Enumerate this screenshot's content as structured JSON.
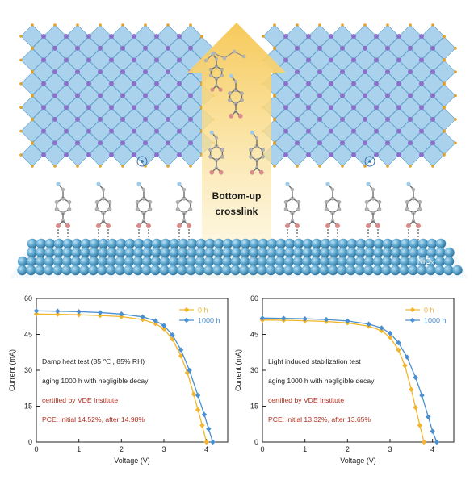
{
  "scene": {
    "arrow_label_line1": "Bottom-up",
    "arrow_label_line2": "crosslink",
    "substrate_label": "NiOₓ",
    "colors": {
      "octahedron": "#8fc3e6",
      "octahedron_edge": "#5b9bc8",
      "cation": "#8c6fc8",
      "anion": "#e0a12a",
      "substrate": "#4f9cc6",
      "arrow": "#f7d98a",
      "molecule_carbon": "#b3b3b3",
      "molecule_oxygen": "#d98a8a"
    }
  },
  "chart_data": [
    {
      "type": "line",
      "xlabel": "Voltage (V)",
      "ylabel": "Current (mA)",
      "xlim": [
        0,
        4.5
      ],
      "ylim": [
        0,
        60
      ],
      "xticks": [
        "0",
        "1",
        "2",
        "3",
        "4"
      ],
      "yticks": [
        "0",
        "15",
        "30",
        "45",
        "60"
      ],
      "legend_position": "top-right",
      "annotations": [
        {
          "text": "Damp heat test (85 ℃ , 85% RH)",
          "color": "#222222"
        },
        {
          "text": "aging 1000 h with negligible decay",
          "color": "#222222"
        },
        {
          "text": "certified by VDE Institute",
          "color": "#b03020"
        },
        {
          "text": "PCE: initial 14.52%, after 14.98%",
          "color": "#b03020"
        }
      ],
      "series": [
        {
          "name": "0 h",
          "color": "#f2b52c",
          "x": [
            0,
            0.5,
            1.0,
            1.5,
            2.0,
            2.5,
            2.8,
            3.0,
            3.2,
            3.4,
            3.55,
            3.7,
            3.8,
            3.9,
            4.0
          ],
          "values": [
            53.5,
            53.4,
            53.2,
            52.9,
            52.4,
            51.2,
            49.5,
            47.3,
            43.0,
            36.0,
            29.0,
            20.0,
            13.5,
            7.0,
            0
          ]
        },
        {
          "name": "1000 h",
          "color": "#4a8fd0",
          "x": [
            0,
            0.5,
            1.0,
            1.5,
            2.0,
            2.5,
            2.8,
            3.0,
            3.2,
            3.4,
            3.6,
            3.8,
            3.95,
            4.05,
            4.15
          ],
          "values": [
            54.8,
            54.7,
            54.5,
            54.1,
            53.5,
            52.3,
            50.7,
            48.7,
            44.8,
            38.5,
            30.0,
            19.5,
            11.5,
            5.5,
            0
          ]
        }
      ]
    },
    {
      "type": "line",
      "xlabel": "Voltage (V)",
      "ylabel": "Current (mA)",
      "xlim": [
        0,
        4.5
      ],
      "ylim": [
        0,
        60
      ],
      "xticks": [
        "0",
        "1",
        "2",
        "3",
        "4"
      ],
      "yticks": [
        "0",
        "15",
        "30",
        "45",
        "60"
      ],
      "legend_position": "top-right",
      "annotations": [
        {
          "text": "Light induced stabilization test",
          "color": "#222222"
        },
        {
          "text": "aging 1000 h with negligible decay",
          "color": "#222222"
        },
        {
          "text": "certified by VDE Institute",
          "color": "#b03020"
        },
        {
          "text": "PCE: initial 13.32%, after 13.65%",
          "color": "#b03020"
        }
      ],
      "series": [
        {
          "name": "0 h",
          "color": "#f2b52c",
          "x": [
            0,
            0.5,
            1.0,
            1.5,
            2.0,
            2.5,
            2.8,
            3.0,
            3.2,
            3.35,
            3.5,
            3.6,
            3.7,
            3.8
          ],
          "values": [
            51.0,
            50.9,
            50.7,
            50.4,
            49.8,
            48.4,
            46.5,
            43.8,
            38.5,
            32.0,
            22.0,
            14.5,
            7.0,
            0
          ]
        },
        {
          "name": "1000 h",
          "color": "#4a8fd0",
          "x": [
            0,
            0.5,
            1.0,
            1.5,
            2.0,
            2.5,
            2.8,
            3.0,
            3.2,
            3.4,
            3.6,
            3.75,
            3.9,
            4.0,
            4.1
          ],
          "values": [
            51.8,
            51.7,
            51.5,
            51.2,
            50.6,
            49.3,
            47.7,
            45.5,
            41.5,
            35.5,
            27.0,
            19.5,
            10.5,
            4.5,
            0
          ]
        }
      ]
    }
  ]
}
